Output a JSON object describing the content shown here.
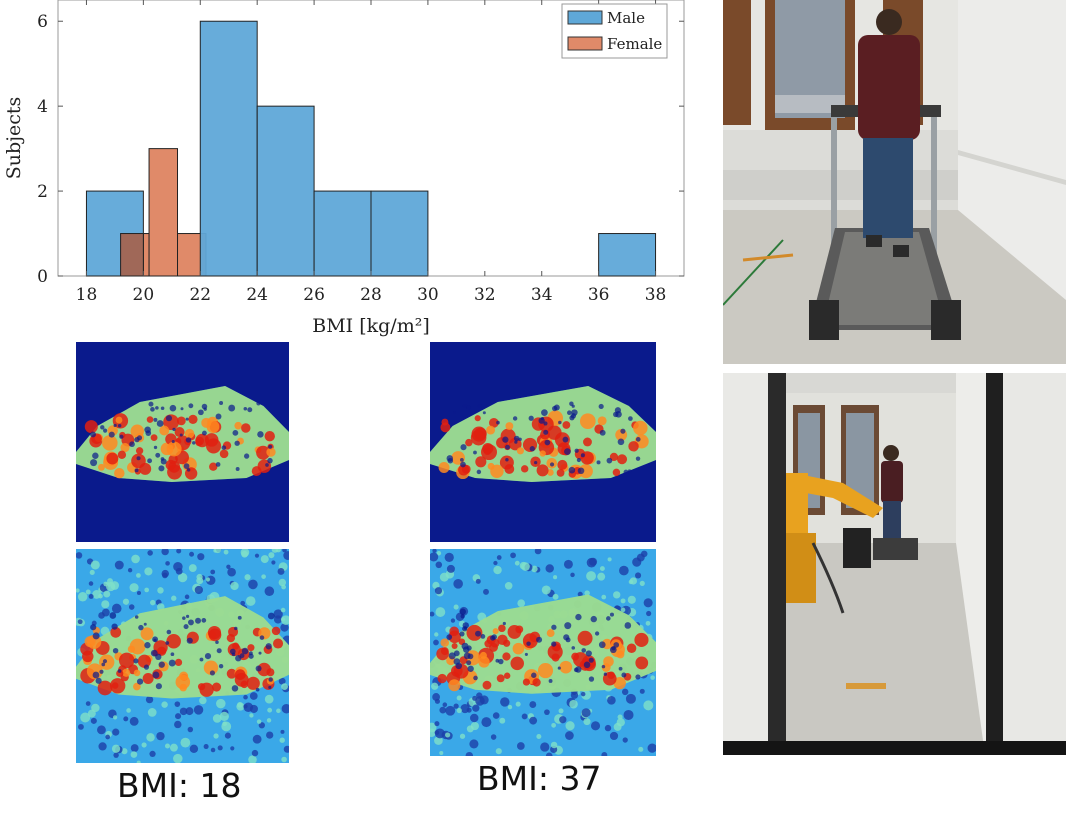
{
  "chart_data": {
    "type": "bar",
    "title": "",
    "xlabel": "BMI [kg/m²]",
    "ylabel": "Subjects",
    "xlim": [
      17,
      39
    ],
    "ylim": [
      0,
      6.5
    ],
    "xticks": [
      18,
      20,
      22,
      24,
      26,
      28,
      30,
      32,
      34,
      36,
      38
    ],
    "yticks": [
      0,
      2,
      4,
      6
    ],
    "legend_position": "top-right",
    "series": [
      {
        "name": "Male",
        "color": "#5fa8d8",
        "bins": [
          {
            "x0": 18,
            "x1": 20,
            "count": 2
          },
          {
            "x0": 22,
            "x1": 24,
            "count": 6
          },
          {
            "x0": 24,
            "x1": 26,
            "count": 4
          },
          {
            "x0": 26,
            "x1": 28,
            "count": 2
          },
          {
            "x0": 28,
            "x1": 30,
            "count": 2
          },
          {
            "x0": 36,
            "x1": 38,
            "count": 1
          }
        ]
      },
      {
        "name": "Female",
        "color": "#e08a69",
        "bins": [
          {
            "x0": 19.2,
            "x1": 20.2,
            "count": 1
          },
          {
            "x0": 20.2,
            "x1": 21.2,
            "count": 3
          },
          {
            "x0": 21.2,
            "x1": 22.2,
            "count": 1
          }
        ]
      }
    ]
  },
  "heatmap_labels": {
    "left": "BMI: 18",
    "right": "BMI: 37"
  },
  "colors": {
    "heat_low": "#0a1a8c",
    "heat_mid": "#33c8f0",
    "heat_high": "#e02010"
  }
}
